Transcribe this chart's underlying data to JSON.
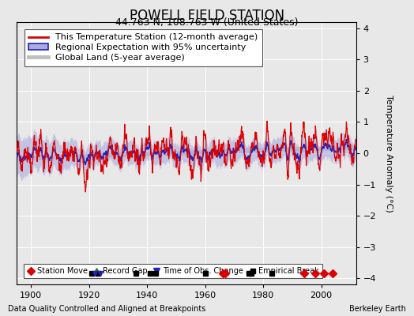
{
  "title": "POWELL FIELD STATION",
  "subtitle": "44.763 N, 108.763 W (United States)",
  "footer_left": "Data Quality Controlled and Aligned at Breakpoints",
  "footer_right": "Berkeley Earth",
  "ylabel": "Temperature Anomaly (°C)",
  "xlim": [
    1895,
    2012
  ],
  "ylim": [
    -4.2,
    4.2
  ],
  "yticks": [
    -4,
    -3,
    -2,
    -1,
    0,
    1,
    2,
    3,
    4
  ],
  "xticks": [
    1900,
    1920,
    1940,
    1960,
    1980,
    2000
  ],
  "background_color": "#e8e8e8",
  "plot_bg_color": "#e8e8e8",
  "station_color": "#dd0000",
  "regional_color": "#2222bb",
  "regional_fill_color": "#aaaadd",
  "global_color": "#c0c0c0",
  "title_fontsize": 12,
  "subtitle_fontsize": 9,
  "legend_fontsize": 8,
  "axis_fontsize": 8,
  "seed": 17,
  "start_year": 1895,
  "end_year": 2012,
  "empirical_break_years": [
    1921,
    1923,
    1936,
    1941,
    1943,
    1960,
    1975,
    1976,
    1983
  ],
  "station_move_years": [
    1966,
    1967,
    1994,
    1998,
    2001,
    2004
  ],
  "obs_change_years": [
    1922,
    1924
  ]
}
